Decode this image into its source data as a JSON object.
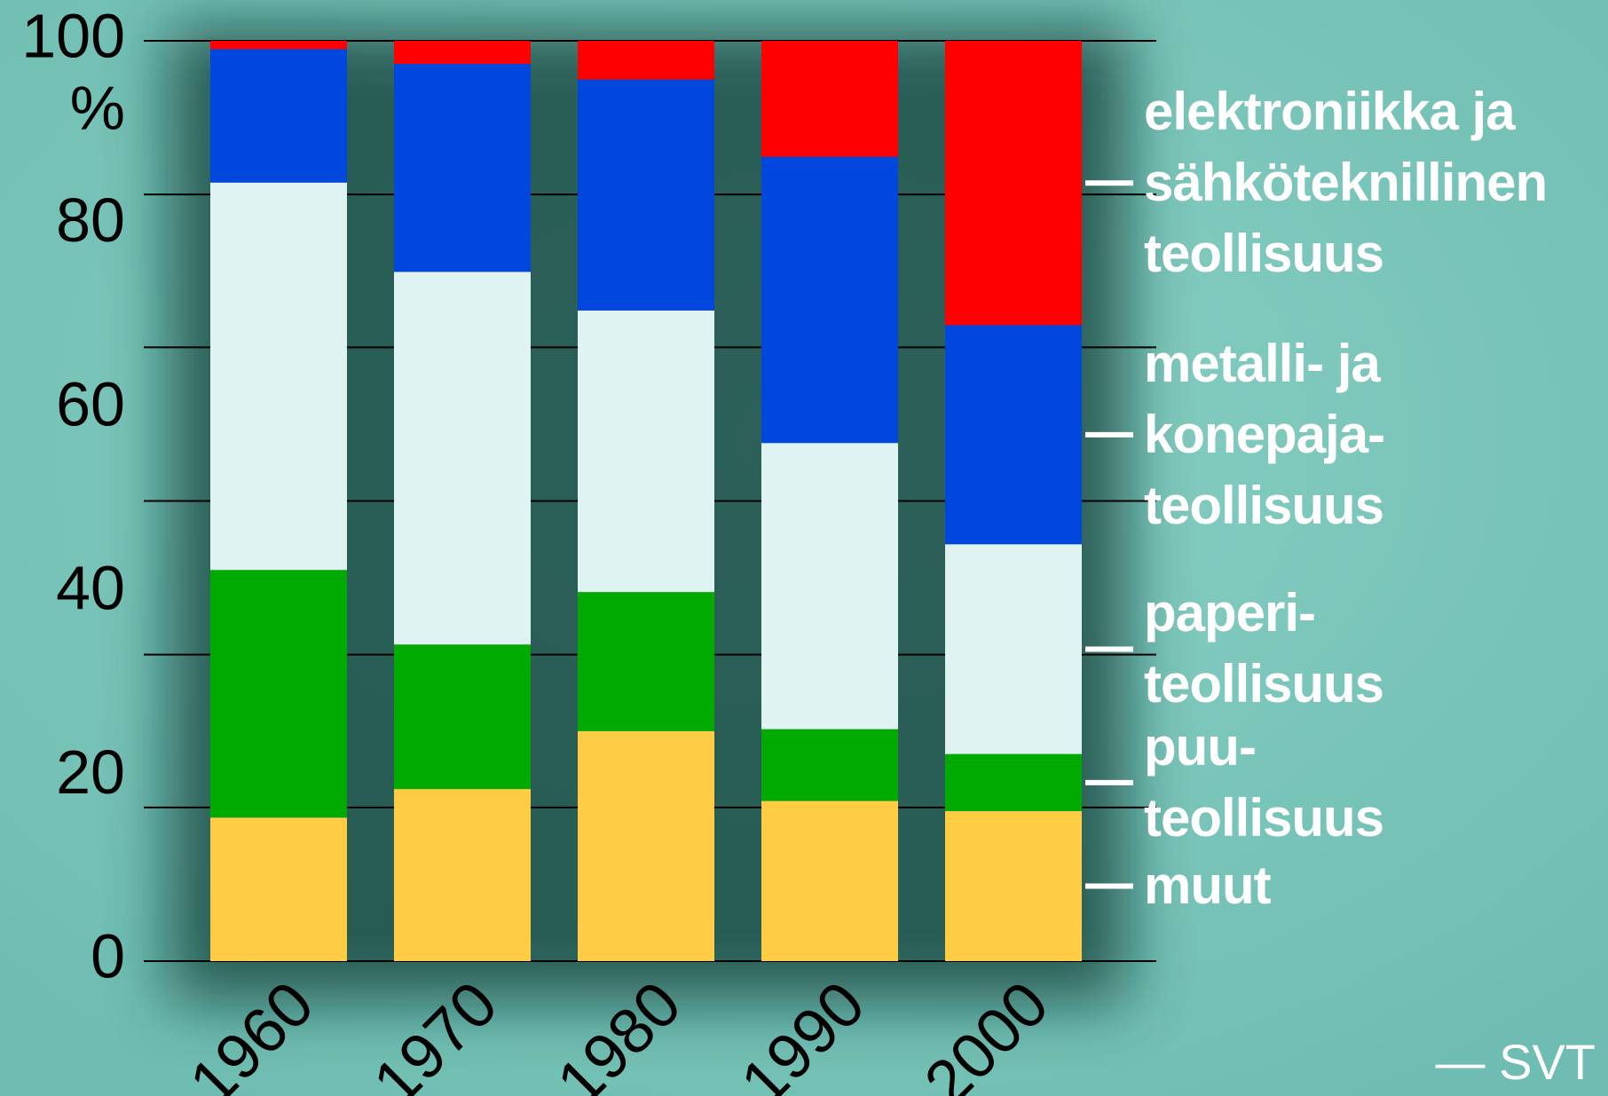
{
  "chart_data": {
    "type": "stacked_bar",
    "ylabel": "%",
    "categories": [
      "1960",
      "1970",
      "1980",
      "1990",
      "2000"
    ],
    "series": [
      {
        "name": "muut",
        "color": "#ffcc44",
        "values": [
          15.6,
          18.7,
          25.0,
          17.4,
          16.3
        ]
      },
      {
        "name": "puu-\nteollisuus",
        "color": "#00aa00",
        "values": [
          26.9,
          15.7,
          15.1,
          7.8,
          6.2
        ]
      },
      {
        "name": "paperi-\nteollisuus",
        "color": "#def3f2",
        "values": [
          42.1,
          40.5,
          30.6,
          31.1,
          22.8
        ]
      },
      {
        "name": "metalli- ja\nkonepaja-\nteollisuus",
        "color": "#0047de",
        "values": [
          14.5,
          22.6,
          25.1,
          31.1,
          23.8
        ]
      },
      {
        "name": "elektroniikka ja\nsähköteknillinen\nteollisuus",
        "color": "#ff0000",
        "values": [
          0.9,
          2.5,
          4.2,
          12.6,
          30.9
        ]
      }
    ],
    "ylim": [
      0,
      100
    ],
    "yticks": [
      0,
      20,
      40,
      60,
      80,
      100
    ],
    "grid_lines": [
      0,
      16.7,
      33.3,
      50,
      66.7,
      83.3,
      100
    ],
    "legend": "right",
    "source": "— SVT"
  }
}
